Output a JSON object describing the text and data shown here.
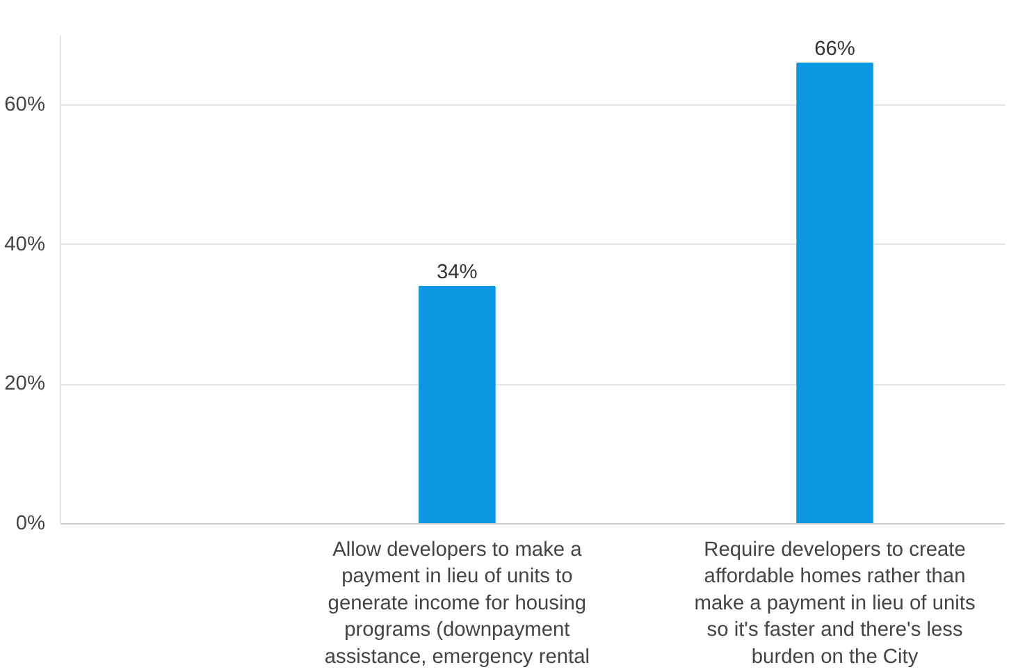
{
  "chart_data": {
    "type": "bar",
    "categories": [
      "Allow developers to make a payment in lieu of units to generate income for housing programs (downpayment assistance, emergency rental",
      "Require developers to create affordable homes rather than make a payment in lieu of units so it's faster and there's less burden on the City"
    ],
    "values": [
      34,
      66
    ],
    "color": "#0a98e2",
    "value_labels": [
      "34%",
      "66%"
    ],
    "ylim": [
      0,
      70
    ],
    "yticks": [
      {
        "value": 0,
        "label": "0%"
      },
      {
        "value": 20,
        "label": "20%"
      },
      {
        "value": 40,
        "label": "40%"
      },
      {
        "value": 60,
        "label": "60%"
      }
    ],
    "grid": "y"
  }
}
